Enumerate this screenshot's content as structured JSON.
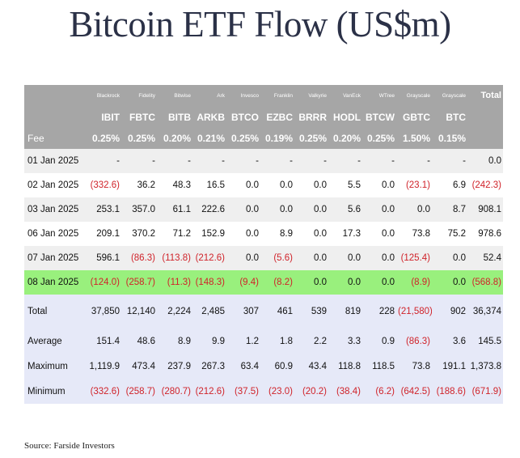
{
  "title": "Bitcoin ETF Flow (US$m)",
  "source": "Source: Farside Investors",
  "header": {
    "issuers": [
      "Blackrock",
      "Fidelity",
      "Bitwise",
      "Ark",
      "Invesco",
      "Franklin",
      "Valkyrie",
      "VanEck",
      "WTree",
      "Grayscale",
      "Grayscale"
    ],
    "total_label": "Total",
    "tickers": [
      "IBIT",
      "FBTC",
      "BITB",
      "ARKB",
      "BTCO",
      "EZBC",
      "BRRR",
      "HODL",
      "BTCW",
      "GBTC",
      "BTC"
    ],
    "fee_label": "Fee",
    "fees": [
      "0.25%",
      "0.25%",
      "0.20%",
      "0.21%",
      "0.25%",
      "0.19%",
      "0.25%",
      "0.20%",
      "0.25%",
      "1.50%",
      "0.15%"
    ]
  },
  "rows": [
    {
      "date": "01 Jan 2025",
      "values": [
        "-",
        "-",
        "-",
        "-",
        "-",
        "-",
        "-",
        "-",
        "-",
        "-",
        "-"
      ],
      "total": "0.0"
    },
    {
      "date": "02 Jan 2025",
      "values": [
        "(332.6)",
        "36.2",
        "48.3",
        "16.5",
        "0.0",
        "0.0",
        "0.0",
        "5.5",
        "0.0",
        "(23.1)",
        "6.9"
      ],
      "total": "(242.3)"
    },
    {
      "date": "03 Jan 2025",
      "values": [
        "253.1",
        "357.0",
        "61.1",
        "222.6",
        "0.0",
        "0.0",
        "0.0",
        "5.6",
        "0.0",
        "0.0",
        "8.7"
      ],
      "total": "908.1"
    },
    {
      "date": "06 Jan 2025",
      "values": [
        "209.1",
        "370.2",
        "71.2",
        "152.9",
        "0.0",
        "8.9",
        "0.0",
        "17.3",
        "0.0",
        "73.8",
        "75.2"
      ],
      "total": "978.6"
    },
    {
      "date": "07 Jan 2025",
      "values": [
        "596.1",
        "(86.3)",
        "(113.8)",
        "(212.6)",
        "0.0",
        "(5.6)",
        "0.0",
        "0.0",
        "0.0",
        "(125.4)",
        "0.0"
      ],
      "total": "52.4"
    },
    {
      "date": "08 Jan 2025",
      "values": [
        "(124.0)",
        "(258.7)",
        "(11.3)",
        "(148.3)",
        "(9.4)",
        "(8.2)",
        "0.0",
        "0.0",
        "0.0",
        "(8.9)",
        "0.0"
      ],
      "total": "(568.8)"
    }
  ],
  "summary": [
    {
      "label": "Total",
      "values": [
        "37,850",
        "12,140",
        "2,224",
        "2,485",
        "307",
        "461",
        "539",
        "819",
        "228",
        "(21,580)",
        "902"
      ],
      "total": "36,374"
    },
    {
      "label": "Average",
      "values": [
        "151.4",
        "48.6",
        "8.9",
        "9.9",
        "1.2",
        "1.8",
        "2.2",
        "3.3",
        "0.9",
        "(86.3)",
        "3.6"
      ],
      "total": "145.5"
    },
    {
      "label": "Maximum",
      "values": [
        "1,119.9",
        "473.4",
        "237.9",
        "267.3",
        "63.4",
        "60.9",
        "43.4",
        "118.8",
        "118.5",
        "73.8",
        "191.1"
      ],
      "total": "1,373.8"
    },
    {
      "label": "Minimum",
      "values": [
        "(332.6)",
        "(258.7)",
        "(280.7)",
        "(212.6)",
        "(37.5)",
        "(23.0)",
        "(20.2)",
        "(38.4)",
        "(6.2)",
        "(642.5)",
        "(188.6)"
      ],
      "total": "(671.9)"
    }
  ]
}
